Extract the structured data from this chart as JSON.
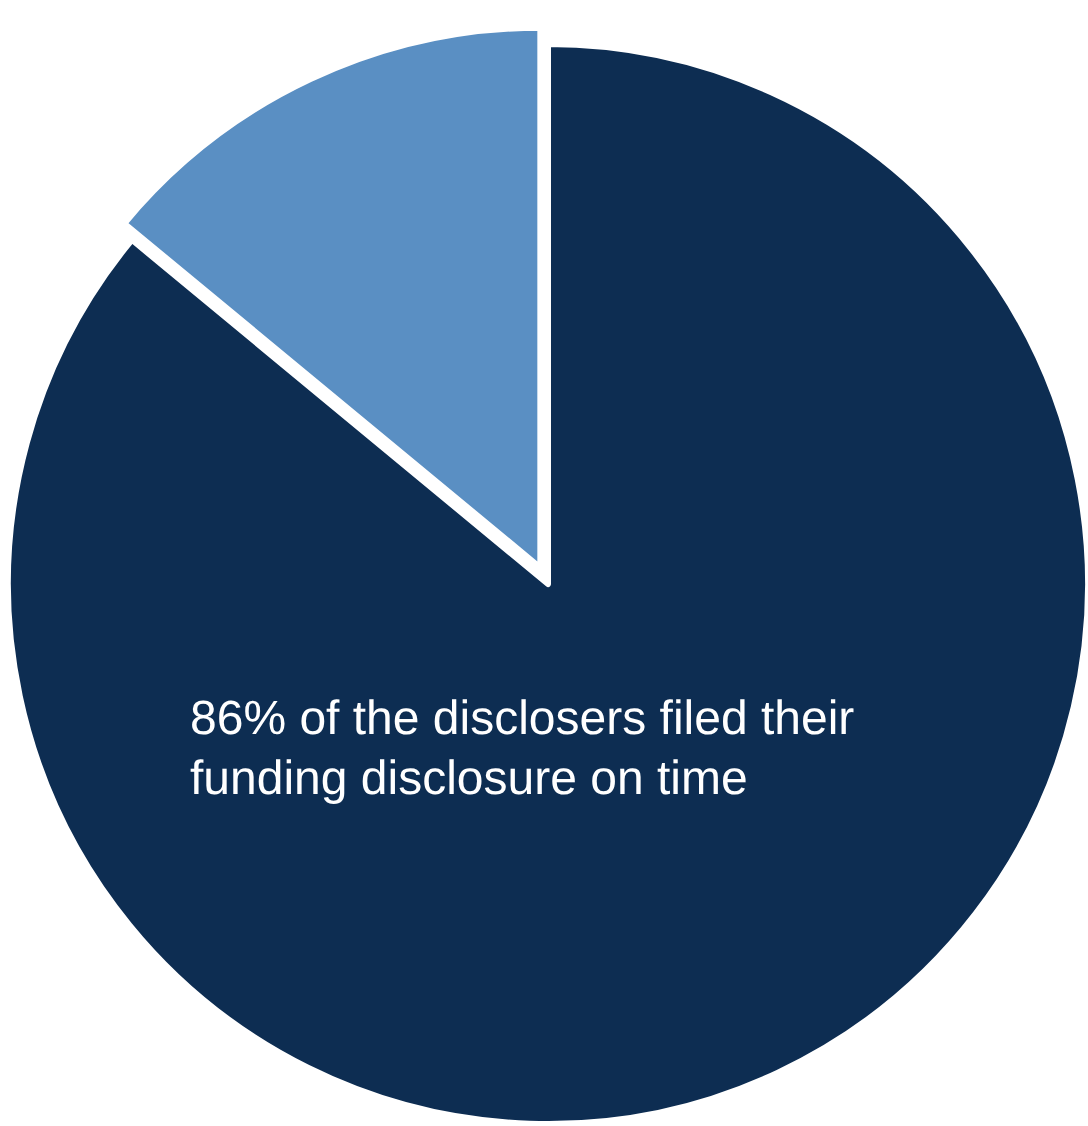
{
  "chart_data": {
    "type": "pie",
    "categories": [
      null,
      null
    ],
    "values": [
      86,
      14
    ],
    "colors": [
      "#0d2d52",
      "#5a8fc3"
    ],
    "annotations": [
      "86% of the disclosers filed their funding disclosure on time"
    ]
  }
}
